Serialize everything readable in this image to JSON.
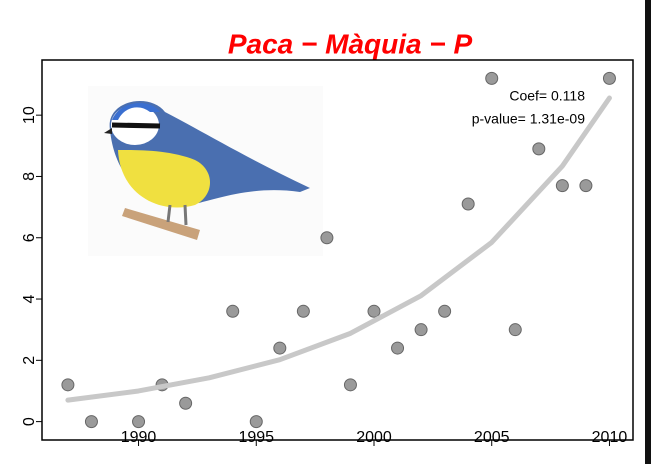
{
  "chart_data": {
    "type": "scatter",
    "title": "Paca − Màquia − P",
    "annotations": [
      "Coef= 0.118",
      "p-value= 1.31e-09"
    ],
    "series": [
      {
        "kind": "points",
        "color": "#9a9a9a",
        "x": [
          1987,
          1988,
          1990,
          1991,
          1992,
          1994,
          1995,
          1996,
          1997,
          1998,
          1999,
          2000,
          2001,
          2002,
          2003,
          2004,
          2005,
          2006,
          2007,
          2008,
          2009,
          2010
        ],
        "values": [
          1.2,
          0,
          0,
          1.2,
          0.6,
          3.6,
          0,
          2.4,
          3.6,
          6.0,
          1.2,
          3.6,
          2.4,
          3.0,
          3.6,
          7.1,
          11.2,
          3.0,
          8.9,
          7.7,
          7.7,
          11.2
        ]
      },
      {
        "kind": "fit",
        "color": "#c8c8c8",
        "x": [
          1987,
          1990,
          1993,
          1996,
          1999,
          2002,
          2005,
          2008,
          2010
        ],
        "values": [
          0.7,
          1.0,
          1.43,
          2.02,
          2.88,
          4.11,
          5.85,
          8.34,
          10.56
        ]
      }
    ],
    "xlim": [
      1985.9,
      2011
    ],
    "ylim": [
      -0.6,
      11.8
    ],
    "xticks": [
      1990,
      1995,
      2000,
      2005,
      2010
    ],
    "yticks": [
      0,
      2,
      4,
      6,
      8,
      10
    ]
  }
}
